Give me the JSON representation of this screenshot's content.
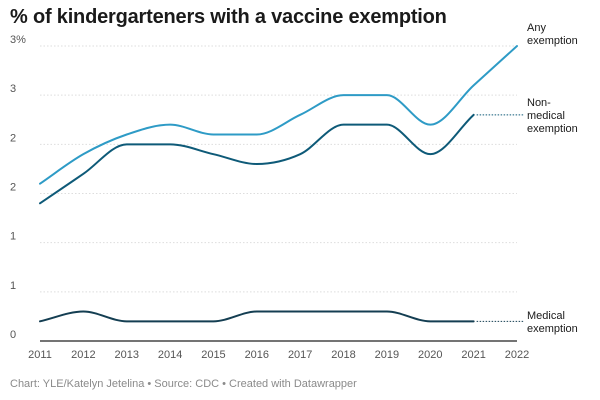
{
  "chart_data": {
    "type": "line",
    "title": "% of kindergarteners with a vaccine exemption",
    "x": [
      "2011",
      "2012",
      "2013",
      "2014",
      "2015",
      "2016",
      "2017",
      "2018",
      "2019",
      "2020",
      "2021",
      "2022"
    ],
    "y_tick_labels": [
      "0",
      "1",
      "1",
      "2",
      "2",
      "3",
      "3%"
    ],
    "y_tick_values": [
      0,
      0.5,
      1,
      1.5,
      2,
      2.5,
      3
    ],
    "ylim": [
      0,
      3
    ],
    "grid": true,
    "legend": "direct labels at line ends",
    "series": [
      {
        "name": "Any exemption",
        "label_lines": [
          "Any",
          "exemption"
        ],
        "color": "#2e9bc6",
        "values": [
          1.6,
          1.9,
          2.1,
          2.2,
          2.1,
          2.1,
          2.3,
          2.5,
          2.5,
          2.2,
          2.6,
          3.0
        ]
      },
      {
        "name": "Non-medical exemption",
        "label_lines": [
          "Non-",
          "medical",
          "exemption"
        ],
        "color": "#0e5a78",
        "values": [
          1.4,
          1.7,
          2.0,
          2.0,
          1.9,
          1.8,
          1.9,
          2.2,
          2.2,
          1.9,
          2.3,
          null
        ]
      },
      {
        "name": "Medical exemption",
        "label_lines": [
          "Medical",
          "exemption"
        ],
        "color": "#143e52",
        "values": [
          0.2,
          0.3,
          0.2,
          0.2,
          0.2,
          0.3,
          0.3,
          0.3,
          0.3,
          0.2,
          0.2,
          null
        ]
      }
    ]
  },
  "footer": "Chart: YLE/Katelyn Jetelina • Source: CDC • Created with Datawrapper"
}
